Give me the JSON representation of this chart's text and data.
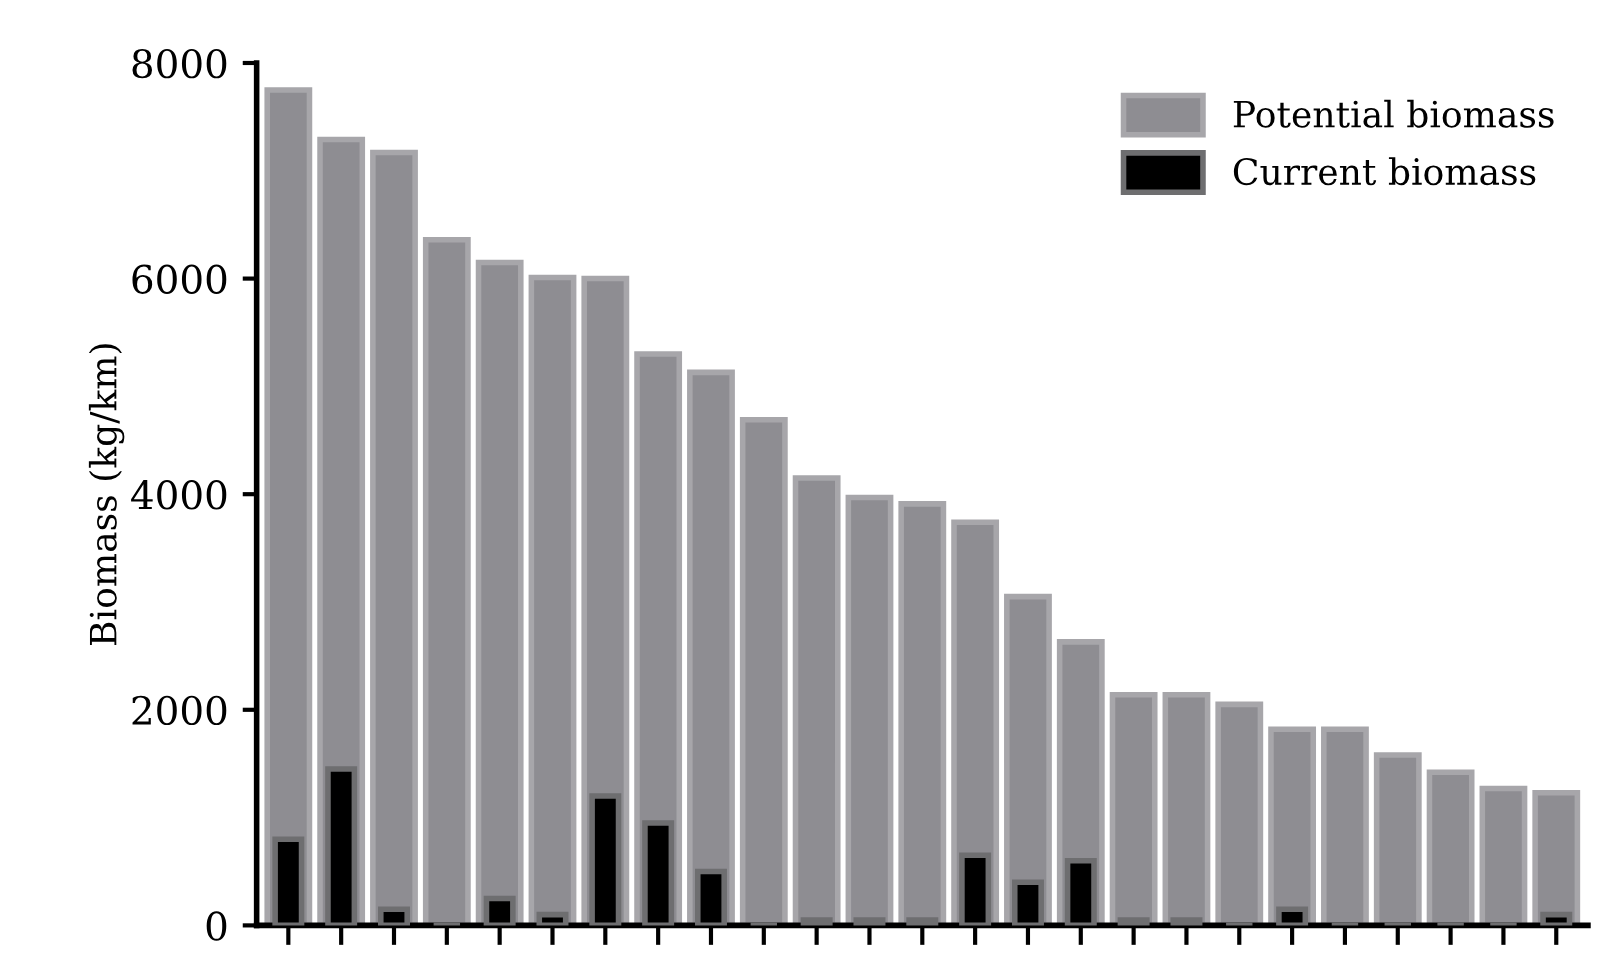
{
  "chart_data": {
    "type": "bar",
    "ylabel": "Biomass (kg/km)",
    "categories": [
      null,
      null,
      null,
      null,
      null,
      null,
      null,
      null,
      null,
      null,
      null,
      null,
      null,
      null,
      null,
      null,
      null,
      null,
      null,
      null,
      null,
      null,
      null,
      null,
      null
    ],
    "series": [
      {
        "name": "Potential biomass",
        "color": "#8e8d92",
        "values": [
          7750,
          7290,
          7170,
          6360,
          6150,
          6010,
          6000,
          5300,
          5130,
          4690,
          4150,
          3970,
          3910,
          3740,
          3050,
          2630,
          2140,
          2140,
          2050,
          1820,
          1820,
          1580,
          1420,
          1270,
          1230
        ]
      },
      {
        "name": "Current biomass",
        "color": "#000000",
        "values": [
          800,
          1450,
          150,
          0,
          250,
          100,
          1200,
          950,
          500,
          0,
          50,
          50,
          50,
          650,
          400,
          600,
          50,
          50,
          0,
          150,
          0,
          0,
          0,
          0,
          100
        ]
      }
    ],
    "ylim": [
      0,
      8000
    ],
    "yticks": [
      0,
      2000,
      4000,
      6000,
      8000
    ],
    "grid": false,
    "legend": "top right",
    "tick_labels": "y"
  }
}
